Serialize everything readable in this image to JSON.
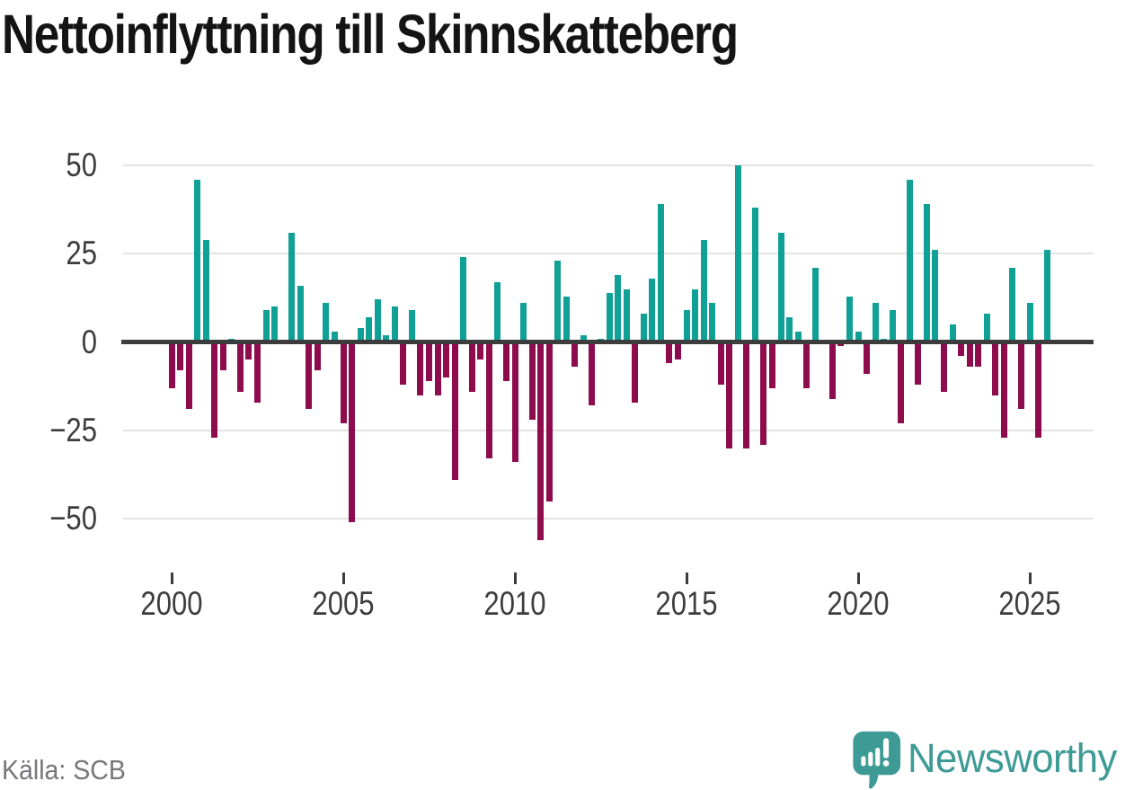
{
  "title": "Nettoinflyttning till Skinnskatteberg",
  "source": "Källa: SCB",
  "branding": {
    "name": "Newsworthy",
    "logo_icon": "speech-bubble-with-bar-chart-and-exclamation",
    "color": "#3d9a94"
  },
  "colors": {
    "positive_bar": "#0fa096",
    "negative_bar": "#8e0c4e",
    "axis_line": "#3c3c3c",
    "gridline": "#e3e3e3",
    "axis_text": "#3d3d3d",
    "title_text": "#141414",
    "source_text": "#76767b",
    "background": "#ffffff"
  },
  "chart_data": {
    "type": "bar",
    "title": "Nettoinflyttning till Skinnskatteberg",
    "ylabel": "",
    "xlabel": "",
    "frequency": "quarterly",
    "start_period": "2000-Q1",
    "end_period": "2025-Q3",
    "values": [
      -13,
      -8,
      -19,
      46,
      29,
      -27,
      -8,
      1,
      -14,
      -5,
      -17,
      9,
      10,
      0,
      31,
      16,
      -19,
      -8,
      11,
      3,
      -23,
      -51,
      4,
      7,
      12,
      2,
      10,
      -12,
      9,
      -15,
      -11,
      -15,
      -10,
      -39,
      24,
      -14,
      -5,
      -33,
      17,
      -11,
      -34,
      11,
      -22,
      -56,
      -45,
      23,
      13,
      -7,
      2,
      -18,
      1,
      14,
      19,
      15,
      -17,
      8,
      18,
      39,
      -6,
      -5,
      9,
      15,
      29,
      11,
      -12,
      -30,
      50,
      -30,
      38,
      -29,
      -13,
      31,
      7,
      3,
      -13,
      21,
      0,
      -16,
      -1,
      13,
      3,
      -9,
      11,
      1,
      9,
      -23,
      46,
      -12,
      39,
      26,
      -14,
      5,
      -4,
      -7,
      -7,
      8,
      -15,
      -27,
      21,
      -19,
      11,
      -27,
      26
    ],
    "yticks": [
      50,
      25,
      0,
      -25,
      -50
    ],
    "xticks": [
      2000,
      2005,
      2010,
      2015,
      2020,
      2025
    ],
    "ylim": [
      -60,
      52
    ],
    "grid": "horizontal",
    "legend": "none",
    "positive_color": "#0fa096",
    "negative_color": "#8e0c4e"
  }
}
